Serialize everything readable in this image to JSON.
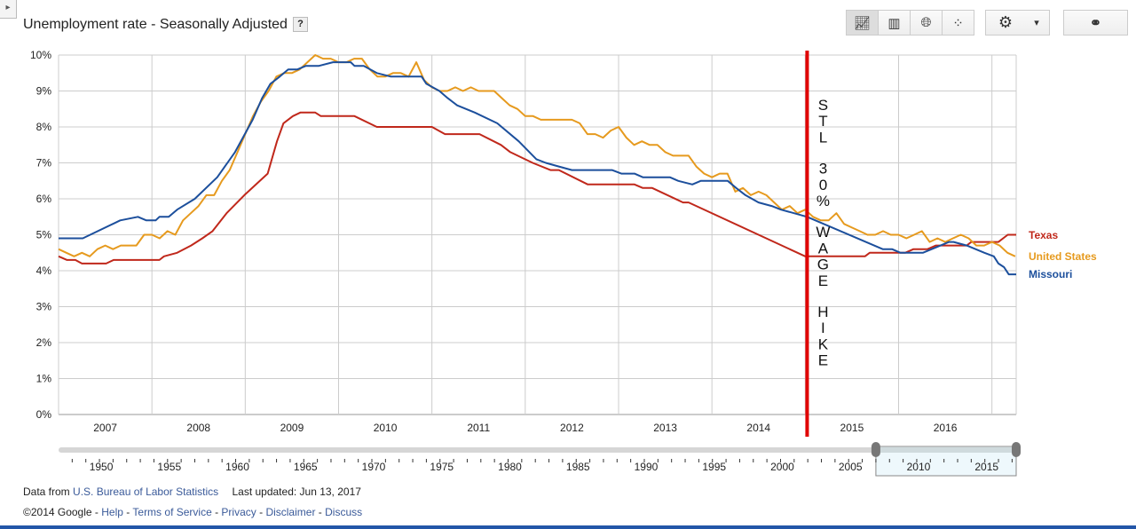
{
  "header": {
    "title": "Unemployment rate - Seasonally Adjusted",
    "help_label": "?",
    "corner_icon": "expand-arrow-icon"
  },
  "toolbar": {
    "chart_types": [
      {
        "icon": "line-chart-icon",
        "glyph": "📈︎"
      },
      {
        "icon": "bar-chart-icon",
        "glyph": "▥"
      },
      {
        "icon": "globe-map-icon",
        "glyph": "🌐︎"
      },
      {
        "icon": "scatter-chart-icon",
        "glyph": "⁘"
      }
    ],
    "settings_icon": "gear-icon",
    "settings_glyph": "⚙",
    "dropdown_glyph": "▾",
    "link_icon": "link-icon",
    "link_glyph": "⚭"
  },
  "footer": {
    "data_from": "Data from",
    "source": "U.S. Bureau of Labor Statistics",
    "updated": "Last updated: Jun 13, 2017",
    "copyright": "©2014 Google",
    "sep": " - ",
    "links": [
      "Help",
      "Terms of Service",
      "Privacy",
      "Disclaimer",
      "Discuss"
    ]
  },
  "timeline": {
    "labels": [
      "1950",
      "1955",
      "1960",
      "1965",
      "1970",
      "1975",
      "1980",
      "1985",
      "1990",
      "1995",
      "2000",
      "2005",
      "2010",
      "2015"
    ],
    "range_start": 1947,
    "range_end": 2017.3,
    "selected_start": 2007,
    "selected_end": 2017.3
  },
  "annotation": {
    "text": "STL 30% WAGE HIKE",
    "year": 2015.02,
    "color": "#e00000"
  },
  "chart_data": {
    "type": "line",
    "title": "Unemployment rate - Seasonally Adjusted",
    "xlabel": "",
    "ylabel": "",
    "xlim": [
      2007,
      2017.26
    ],
    "ylim": [
      0,
      10
    ],
    "x_ticks": [
      "2007",
      "2008",
      "2009",
      "2010",
      "2011",
      "2012",
      "2013",
      "2014",
      "2015",
      "2016"
    ],
    "y_ticks": [
      "0%",
      "1%",
      "2%",
      "3%",
      "4%",
      "5%",
      "6%",
      "7%",
      "8%",
      "9%",
      "10%"
    ],
    "grid": true,
    "legend": "right",
    "series": [
      {
        "name": "Texas",
        "color": "#c0281b",
        "points": [
          [
            2007.0,
            4.4
          ],
          [
            2007.09,
            4.3
          ],
          [
            2007.18,
            4.3
          ],
          [
            2007.25,
            4.2
          ],
          [
            2007.51,
            4.2
          ],
          [
            2007.59,
            4.3
          ],
          [
            2008.08,
            4.3
          ],
          [
            2008.13,
            4.4
          ],
          [
            2008.27,
            4.5
          ],
          [
            2008.42,
            4.7
          ],
          [
            2008.54,
            4.9
          ],
          [
            2008.65,
            5.1
          ],
          [
            2008.8,
            5.6
          ],
          [
            2008.99,
            6.1
          ],
          [
            2009.24,
            6.7
          ],
          [
            2009.34,
            7.6
          ],
          [
            2009.41,
            8.1
          ],
          [
            2009.51,
            8.3
          ],
          [
            2009.59,
            8.4
          ],
          [
            2009.75,
            8.4
          ],
          [
            2009.81,
            8.3
          ],
          [
            2010.17,
            8.3
          ],
          [
            2010.41,
            8.0
          ],
          [
            2011.0,
            8.0
          ],
          [
            2011.14,
            7.8
          ],
          [
            2011.51,
            7.8
          ],
          [
            2011.74,
            7.5
          ],
          [
            2011.84,
            7.3
          ],
          [
            2012.08,
            7.0
          ],
          [
            2012.27,
            6.8
          ],
          [
            2012.36,
            6.8
          ],
          [
            2012.67,
            6.4
          ],
          [
            2013.17,
            6.4
          ],
          [
            2013.26,
            6.3
          ],
          [
            2013.36,
            6.3
          ],
          [
            2013.69,
            5.9
          ],
          [
            2013.75,
            5.9
          ],
          [
            2015.0,
            4.4
          ],
          [
            2015.64,
            4.4
          ],
          [
            2015.69,
            4.5
          ],
          [
            2016.07,
            4.5
          ],
          [
            2016.16,
            4.6
          ],
          [
            2016.31,
            4.6
          ],
          [
            2016.4,
            4.7
          ],
          [
            2016.73,
            4.7
          ],
          [
            2016.78,
            4.8
          ],
          [
            2017.07,
            4.8
          ],
          [
            2017.17,
            5.0
          ],
          [
            2017.26,
            5.0
          ]
        ]
      },
      {
        "name": "United States",
        "color": "#e69a1e",
        "start": 2007.0,
        "step_months": 1,
        "values": [
          4.6,
          4.5,
          4.4,
          4.5,
          4.4,
          4.6,
          4.7,
          4.6,
          4.7,
          4.7,
          4.7,
          5.0,
          5.0,
          4.9,
          5.1,
          5.0,
          5.4,
          5.6,
          5.8,
          6.1,
          6.1,
          6.5,
          6.8,
          7.3,
          7.8,
          8.3,
          8.7,
          9.0,
          9.4,
          9.5,
          9.5,
          9.6,
          9.8,
          10.0,
          9.9,
          9.9,
          9.8,
          9.8,
          9.9,
          9.9,
          9.6,
          9.4,
          9.4,
          9.5,
          9.5,
          9.4,
          9.8,
          9.3,
          9.1,
          9.0,
          9.0,
          9.1,
          9.0,
          9.1,
          9.0,
          9.0,
          9.0,
          8.8,
          8.6,
          8.5,
          8.3,
          8.3,
          8.2,
          8.2,
          8.2,
          8.2,
          8.2,
          8.1,
          7.8,
          7.8,
          7.7,
          7.9,
          8.0,
          7.7,
          7.5,
          7.6,
          7.5,
          7.5,
          7.3,
          7.2,
          7.2,
          7.2,
          6.9,
          6.7,
          6.6,
          6.7,
          6.7,
          6.2,
          6.3,
          6.1,
          6.2,
          6.1,
          5.9,
          5.7,
          5.8,
          5.6,
          5.7,
          5.5,
          5.4,
          5.4,
          5.6,
          5.3,
          5.2,
          5.1,
          5.0,
          5.0,
          5.1,
          5.0,
          5.0,
          4.9,
          5.0,
          5.1,
          4.8,
          4.9,
          4.8,
          4.9,
          5.0,
          4.9,
          4.7,
          4.7,
          4.8,
          4.7,
          4.5,
          4.4
        ]
      },
      {
        "name": "Missouri",
        "color": "#1c4f9c",
        "points": [
          [
            2007.0,
            4.9
          ],
          [
            2007.26,
            4.9
          ],
          [
            2007.66,
            5.4
          ],
          [
            2007.85,
            5.5
          ],
          [
            2007.94,
            5.4
          ],
          [
            2008.04,
            5.4
          ],
          [
            2008.08,
            5.5
          ],
          [
            2008.18,
            5.5
          ],
          [
            2008.27,
            5.7
          ],
          [
            2008.46,
            6.0
          ],
          [
            2008.7,
            6.6
          ],
          [
            2008.89,
            7.3
          ],
          [
            2009.08,
            8.2
          ],
          [
            2009.18,
            8.8
          ],
          [
            2009.27,
            9.2
          ],
          [
            2009.37,
            9.4
          ],
          [
            2009.46,
            9.6
          ],
          [
            2009.56,
            9.6
          ],
          [
            2009.65,
            9.7
          ],
          [
            2009.79,
            9.7
          ],
          [
            2009.94,
            9.8
          ],
          [
            2010.13,
            9.8
          ],
          [
            2010.17,
            9.7
          ],
          [
            2010.27,
            9.7
          ],
          [
            2010.41,
            9.5
          ],
          [
            2010.56,
            9.4
          ],
          [
            2010.89,
            9.4
          ],
          [
            2010.94,
            9.2
          ],
          [
            2011.08,
            9.0
          ],
          [
            2011.17,
            8.8
          ],
          [
            2011.27,
            8.6
          ],
          [
            2011.46,
            8.4
          ],
          [
            2011.7,
            8.1
          ],
          [
            2011.93,
            7.6
          ],
          [
            2012.12,
            7.1
          ],
          [
            2012.22,
            7.0
          ],
          [
            2012.36,
            6.9
          ],
          [
            2012.5,
            6.8
          ],
          [
            2012.93,
            6.8
          ],
          [
            2013.03,
            6.7
          ],
          [
            2013.17,
            6.7
          ],
          [
            2013.26,
            6.6
          ],
          [
            2013.55,
            6.6
          ],
          [
            2013.64,
            6.5
          ],
          [
            2013.79,
            6.4
          ],
          [
            2013.88,
            6.5
          ],
          [
            2014.17,
            6.5
          ],
          [
            2014.26,
            6.3
          ],
          [
            2014.36,
            6.1
          ],
          [
            2014.5,
            5.9
          ],
          [
            2014.64,
            5.8
          ],
          [
            2014.74,
            5.7
          ],
          [
            2014.88,
            5.6
          ],
          [
            2015.02,
            5.5
          ],
          [
            2015.83,
            4.6
          ],
          [
            2015.93,
            4.6
          ],
          [
            2016.02,
            4.5
          ],
          [
            2016.26,
            4.5
          ],
          [
            2016.45,
            4.7
          ],
          [
            2016.54,
            4.8
          ],
          [
            2016.59,
            4.8
          ],
          [
            2016.73,
            4.7
          ],
          [
            2016.92,
            4.5
          ],
          [
            2017.02,
            4.4
          ],
          [
            2017.07,
            4.2
          ],
          [
            2017.13,
            4.1
          ],
          [
            2017.18,
            3.9
          ],
          [
            2017.26,
            3.9
          ]
        ]
      }
    ]
  }
}
